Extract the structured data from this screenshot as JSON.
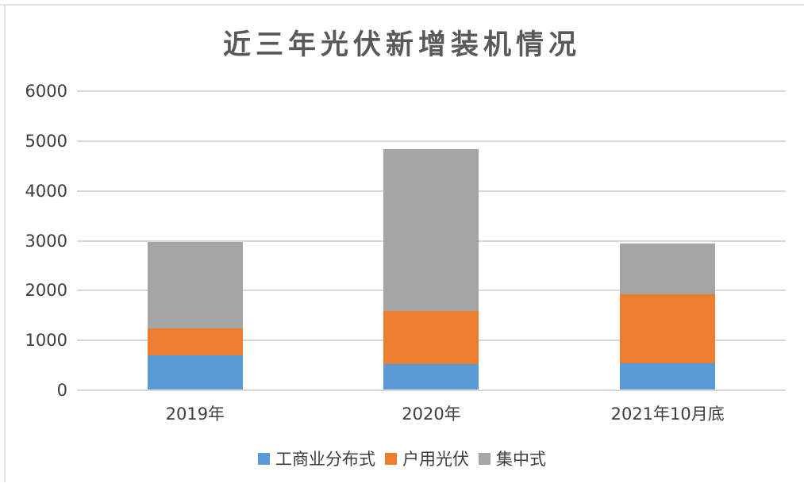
{
  "chart_data": {
    "type": "bar",
    "stacked": true,
    "title": "近三年光伏新增装机情况",
    "categories": [
      "2019年",
      "2020年",
      "2021年10月底"
    ],
    "series": [
      {
        "id": "commercial-distributed",
        "name": "工商业分布式",
        "color": "#5B9BD5",
        "values": [
          680,
          510,
          520
        ]
      },
      {
        "id": "residential",
        "name": "户用光伏",
        "color": "#ED7D31",
        "values": [
          540,
          1060,
          1390
        ]
      },
      {
        "id": "centralized",
        "name": "集中式",
        "color": "#A5A5A5",
        "values": [
          1740,
          3250,
          1020
        ]
      }
    ],
    "stack_totals": [
      2960,
      4820,
      2930
    ],
    "xlabel": "",
    "ylabel": "",
    "ylim": [
      0,
      6000
    ],
    "yticks": [
      0,
      1000,
      2000,
      3000,
      4000,
      5000,
      6000
    ],
    "grid": true,
    "legend_position": "bottom"
  },
  "style": {
    "bar_color_blue": "#5B9BD5",
    "bar_color_orange": "#ED7D31",
    "bar_color_gray": "#A5A5A5",
    "gridline_color": "#D9D9D9",
    "title_color": "#595959",
    "axis_text_color": "#3D3D3D",
    "frame_border_color": "#E4E4E4",
    "background_color": "#FFFFFF"
  }
}
